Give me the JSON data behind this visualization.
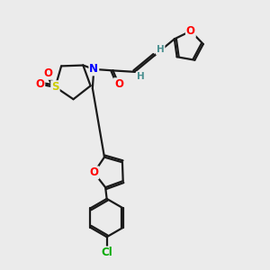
{
  "bg_color": "#ebebeb",
  "bond_color": "#1a1a1a",
  "bond_width": 1.6,
  "dbl_off": 0.07,
  "atom_colors": {
    "O": "#ff0000",
    "S": "#cccc00",
    "N": "#0000ff",
    "Cl": "#00aa00",
    "H": "#4a9090"
  },
  "afs": 8.5,
  "hfs": 7.5
}
